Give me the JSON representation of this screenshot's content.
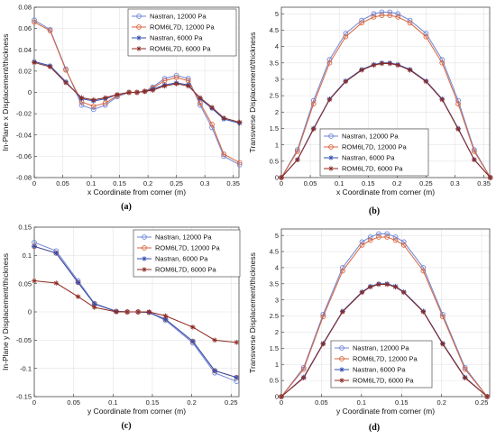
{
  "colors": {
    "blue": "#6f86d6",
    "orange": "#d9633a",
    "navy": "#2e4eb0",
    "maroon": "#8c2a22"
  },
  "chart_data": [
    {
      "type": "line",
      "panel_label": "(a)",
      "xlabel": "x Coordinate from corner (m)",
      "ylabel": "In-Plane x Displacement/thickness",
      "xlim": [
        0,
        0.36
      ],
      "ylim": [
        -0.08,
        0.08
      ],
      "xticks": [
        0,
        0.05,
        0.1,
        0.15,
        0.2,
        0.25,
        0.3,
        0.35
      ],
      "xtick_labels": [
        "0",
        "0.05",
        "0.1",
        "0.15",
        "0.2",
        "0.25",
        "0.3",
        "0.35"
      ],
      "yticks": [
        -0.08,
        -0.06,
        -0.04,
        -0.02,
        0,
        0.02,
        0.04,
        0.06,
        0.08
      ],
      "ytick_labels": [
        "-0.08",
        "-0.06",
        "-0.04",
        "-0.02",
        "0",
        "0.02",
        "0.04",
        "0.06",
        "0.08"
      ],
      "grid": true,
      "legend_position": "top-right",
      "x": [
        0,
        0.0278,
        0.0556,
        0.0833,
        0.1042,
        0.125,
        0.1458,
        0.1667,
        0.1806,
        0.1944,
        0.2083,
        0.2292,
        0.25,
        0.2708,
        0.2917,
        0.3125,
        0.3333,
        0.3611
      ],
      "series": [
        {
          "name": "Nastran, 12000 Pa",
          "color": "#6f86d6",
          "marker": "circle",
          "values": [
            0.068,
            0.059,
            0.022,
            -0.012,
            -0.016,
            -0.012,
            -0.004,
            0.0,
            0.0,
            0.001,
            0.005,
            0.013,
            0.016,
            0.013,
            -0.012,
            -0.033,
            -0.06,
            -0.068
          ]
        },
        {
          "name": "ROM6L7D, 12000 Pa",
          "color": "#d9633a",
          "marker": "circle",
          "values": [
            0.066,
            0.058,
            0.021,
            -0.009,
            -0.013,
            -0.01,
            -0.003,
            0.0,
            0.0,
            0.001,
            0.004,
            0.011,
            0.014,
            0.011,
            -0.01,
            -0.03,
            -0.058,
            -0.066
          ]
        },
        {
          "name": "Nastran, 6000 Pa",
          "color": "#2e4eb0",
          "marker": "star",
          "values": [
            0.029,
            0.025,
            0.01,
            -0.006,
            -0.008,
            -0.006,
            -0.002,
            0.0,
            0.0,
            0.001,
            0.003,
            0.007,
            0.009,
            0.007,
            -0.006,
            -0.015,
            -0.025,
            -0.029
          ]
        },
        {
          "name": "ROM6L7D, 6000 Pa",
          "color": "#8c2a22",
          "marker": "star",
          "values": [
            0.028,
            0.024,
            0.009,
            -0.005,
            -0.007,
            -0.005,
            -0.002,
            0.0,
            0.0,
            0.001,
            0.002,
            0.006,
            0.008,
            0.006,
            -0.005,
            -0.014,
            -0.024,
            -0.028
          ]
        }
      ]
    },
    {
      "type": "line",
      "panel_label": "(b)",
      "xlabel": "x Coordinate from corner (m)",
      "ylabel": "Transverse Displacement/thickness",
      "xlim": [
        0,
        0.36
      ],
      "ylim": [
        0,
        5.2
      ],
      "xticks": [
        0,
        0.05,
        0.1,
        0.15,
        0.2,
        0.25,
        0.3,
        0.35
      ],
      "xtick_labels": [
        "0",
        "0.05",
        "0.1",
        "0.15",
        "0.2",
        "0.25",
        "0.3",
        "0.35"
      ],
      "yticks": [
        0,
        0.5,
        1,
        1.5,
        2,
        2.5,
        3,
        3.5,
        4,
        4.5,
        5
      ],
      "ytick_labels": [
        "0",
        "0.5",
        "1",
        "1.5",
        "2",
        "2.5",
        "3",
        "3.5",
        "4",
        "4.5",
        "5"
      ],
      "grid": true,
      "legend_position": "bottom-center",
      "x": [
        0,
        0.0278,
        0.0556,
        0.0833,
        0.1111,
        0.1389,
        0.1597,
        0.1736,
        0.1875,
        0.2014,
        0.2222,
        0.25,
        0.2778,
        0.3056,
        0.3333,
        0.3611
      ],
      "series": [
        {
          "name": "Nastran, 12000 Pa",
          "color": "#6f86d6",
          "marker": "circle",
          "values": [
            0,
            0.85,
            2.35,
            3.6,
            4.4,
            4.8,
            5.0,
            5.05,
            5.05,
            5.0,
            4.8,
            4.4,
            3.6,
            2.35,
            0.85,
            0
          ]
        },
        {
          "name": "ROM6L7D, 12000 Pa",
          "color": "#d9633a",
          "marker": "circle",
          "values": [
            0,
            0.8,
            2.25,
            3.5,
            4.3,
            4.72,
            4.9,
            4.95,
            4.95,
            4.9,
            4.72,
            4.3,
            3.5,
            2.25,
            0.8,
            0
          ]
        },
        {
          "name": "Nastran, 6000 Pa",
          "color": "#2e4eb0",
          "marker": "star",
          "values": [
            0,
            0.55,
            1.5,
            2.4,
            2.95,
            3.3,
            3.45,
            3.5,
            3.5,
            3.45,
            3.3,
            2.95,
            2.4,
            1.5,
            0.55,
            0
          ]
        },
        {
          "name": "ROM6L7D, 6000 Pa",
          "color": "#8c2a22",
          "marker": "star",
          "values": [
            0,
            0.54,
            1.48,
            2.38,
            2.93,
            3.28,
            3.43,
            3.48,
            3.48,
            3.43,
            3.28,
            2.93,
            2.38,
            1.48,
            0.54,
            0
          ]
        }
      ]
    },
    {
      "type": "line",
      "panel_label": "(c)",
      "xlabel": "y Coordinate from corner (m)",
      "ylabel": "In-Plane y Displacement/thickness",
      "xlim": [
        0,
        0.26
      ],
      "ylim": [
        -0.15,
        0.15
      ],
      "xticks": [
        0,
        0.05,
        0.1,
        0.15,
        0.2,
        0.25
      ],
      "xtick_labels": [
        "0",
        "0.05",
        "0.1",
        "0.15",
        "0.2",
        "0.25"
      ],
      "yticks": [
        -0.15,
        -0.1,
        -0.05,
        0,
        0.05,
        0.1,
        0.15
      ],
      "ytick_labels": [
        "-0.15",
        "-0.1",
        "-0.05",
        "0",
        "0.05",
        "0.1",
        "0.15"
      ],
      "grid": true,
      "legend_position": "top-right",
      "x": [
        0,
        0.0278,
        0.0556,
        0.0764,
        0.1042,
        0.1181,
        0.1319,
        0.1458,
        0.1667,
        0.2014,
        0.2292,
        0.2569
      ],
      "series": [
        {
          "name": "Nastran, 12000 Pa",
          "color": "#6f86d6",
          "marker": "circle",
          "values": [
            0.123,
            0.108,
            0.055,
            0.015,
            0.001,
            0.0,
            0.0,
            -0.001,
            -0.015,
            -0.055,
            -0.108,
            -0.123
          ]
        },
        {
          "name": "ROM6L7D, 12000 Pa",
          "color": "#d9633a",
          "marker": "circle",
          "values": [
            0.116,
            0.104,
            0.052,
            0.014,
            0.001,
            0.0,
            0.0,
            -0.001,
            -0.013,
            -0.052,
            -0.104,
            -0.116
          ]
        },
        {
          "name": "Nastran, 6000 Pa",
          "color": "#2e4eb0",
          "marker": "star",
          "values": [
            0.116,
            0.104,
            0.052,
            0.014,
            0.001,
            0.0,
            0.0,
            -0.001,
            -0.013,
            -0.052,
            -0.104,
            -0.116
          ]
        },
        {
          "name": "ROM6L7D, 6000 Pa",
          "color": "#8c2a22",
          "marker": "star",
          "values": [
            0.055,
            0.051,
            0.027,
            0.008,
            0.0,
            0.0,
            0.0,
            0.0,
            -0.007,
            -0.027,
            -0.05,
            -0.054
          ]
        }
      ]
    },
    {
      "type": "line",
      "panel_label": "(d)",
      "xlabel": "y Coordinate from corner (m)",
      "ylabel": "Transverse Displacement/thickness",
      "xlim": [
        0,
        0.26
      ],
      "ylim": [
        0,
        5.2
      ],
      "xticks": [
        0,
        0.05,
        0.1,
        0.15,
        0.2,
        0.25
      ],
      "xtick_labels": [
        "0",
        "0.05",
        "0.1",
        "0.15",
        "0.2",
        "0.25"
      ],
      "yticks": [
        0,
        0.5,
        1,
        1.5,
        2,
        2.5,
        3,
        3.5,
        4,
        4.5,
        5
      ],
      "ytick_labels": [
        "0",
        "0.5",
        "1",
        "1.5",
        "2",
        "2.5",
        "3",
        "3.5",
        "4",
        "4.5",
        "5"
      ],
      "grid": true,
      "legend_position": "bottom-center",
      "x": [
        0,
        0.0278,
        0.0521,
        0.0764,
        0.1007,
        0.1111,
        0.1215,
        0.1319,
        0.1424,
        0.1528,
        0.1771,
        0.2014,
        0.2292,
        0.2569
      ],
      "series": [
        {
          "name": "Nastran, 12000 Pa",
          "color": "#6f86d6",
          "marker": "circle",
          "values": [
            0,
            0.9,
            2.55,
            4.0,
            4.8,
            4.95,
            5.05,
            5.05,
            4.95,
            4.8,
            4.0,
            2.55,
            0.9,
            0
          ]
        },
        {
          "name": "ROM6L7D, 12000 Pa",
          "color": "#d9633a",
          "marker": "circle",
          "values": [
            0,
            0.85,
            2.48,
            3.9,
            4.7,
            4.85,
            4.95,
            4.95,
            4.85,
            4.7,
            3.9,
            2.48,
            0.85,
            0
          ]
        },
        {
          "name": "Nastran, 6000 Pa",
          "color": "#2e4eb0",
          "marker": "star",
          "values": [
            0,
            0.6,
            1.65,
            2.65,
            3.25,
            3.42,
            3.5,
            3.5,
            3.42,
            3.25,
            2.65,
            1.65,
            0.6,
            0
          ]
        },
        {
          "name": "ROM6L7D, 6000 Pa",
          "color": "#8c2a22",
          "marker": "star",
          "values": [
            0,
            0.58,
            1.63,
            2.63,
            3.23,
            3.4,
            3.48,
            3.48,
            3.4,
            3.23,
            2.63,
            1.63,
            0.58,
            0
          ]
        }
      ]
    }
  ]
}
